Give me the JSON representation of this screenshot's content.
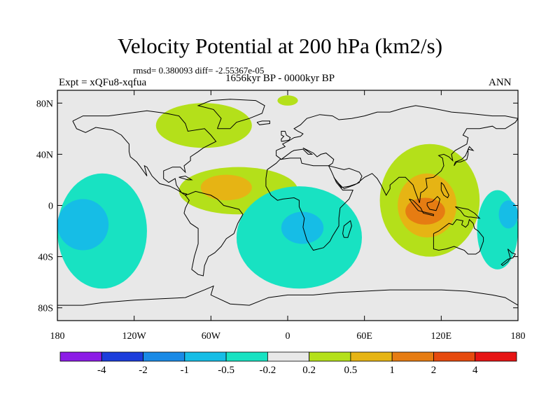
{
  "chart_data": {
    "type": "heatmap",
    "title": "Velocity Potential at 200 hPa (km2/s)",
    "stats_text": "rmsd= 0.380093 diff= -2.55367e-05",
    "left_label": "Expt = xQFu8-xqfua",
    "center_label": "1656kyr BP - 0000kyr BP",
    "right_label": "ANN",
    "projection": "cylindrical-equidistant",
    "xlim": [
      -180,
      180
    ],
    "ylim": [
      -90,
      90
    ],
    "x_ticks": [
      {
        "value": -180,
        "label": "180"
      },
      {
        "value": -120,
        "label": "120W"
      },
      {
        "value": -60,
        "label": "60W"
      },
      {
        "value": 0,
        "label": "0"
      },
      {
        "value": 60,
        "label": "60E"
      },
      {
        "value": 120,
        "label": "120E"
      },
      {
        "value": 180,
        "label": "180"
      }
    ],
    "y_ticks": [
      {
        "value": 80,
        "label": "80N"
      },
      {
        "value": 40,
        "label": "40N"
      },
      {
        "value": 0,
        "label": "0"
      },
      {
        "value": -40,
        "label": "40S"
      },
      {
        "value": -80,
        "label": "80S"
      }
    ],
    "colorbar": {
      "levels": [
        "-4",
        "-2",
        "-1",
        "-0.5",
        "-0.2",
        "0.2",
        "0.5",
        "1",
        "2",
        "4"
      ],
      "colors": [
        "#8c1ce6",
        "#1c3ddb",
        "#1a8ae6",
        "#16bde6",
        "#18e2c2",
        "#e8e8e8",
        "#b4e01a",
        "#e6b414",
        "#e67c12",
        "#e64a0e",
        "#e61414"
      ]
    },
    "blobs": [
      {
        "level": "0.2 to 0.5",
        "color": "#b4e01a",
        "lon": [
          -85,
          8
        ],
        "lat": [
          -7,
          30
        ]
      },
      {
        "level": "0.5 to 1",
        "color": "#e6b414",
        "lon": [
          -68,
          -28
        ],
        "lat": [
          4,
          24
        ]
      },
      {
        "level": "0.2 to 0.5",
        "color": "#b4e01a",
        "lon": [
          -103,
          -28
        ],
        "lat": [
          45,
          80
        ]
      },
      {
        "level": "0.2 to 0.5",
        "color": "#b4e01a",
        "lon": [
          -8,
          8
        ],
        "lat": [
          78,
          86
        ]
      },
      {
        "level": "0.2 to 0.5",
        "color": "#b4e01a",
        "lon": [
          72,
          150
        ],
        "lat": [
          -40,
          48
        ]
      },
      {
        "level": "0.5 to 1",
        "color": "#e6b414",
        "lon": [
          86,
          132
        ],
        "lat": [
          -25,
          25
        ]
      },
      {
        "level": "1 to 2",
        "color": "#e67c12",
        "lon": [
          92,
          123
        ],
        "lat": [
          -15,
          6
        ]
      },
      {
        "level": "-0.5 to -0.2",
        "color": "#18e2c2",
        "lon": [
          -180,
          -110
        ],
        "lat": [
          -65,
          25
        ]
      },
      {
        "level": "-1 to -0.5",
        "color": "#16bde6",
        "lon": [
          -180,
          -140
        ],
        "lat": [
          -35,
          5
        ]
      },
      {
        "level": "-0.5 to -0.2",
        "color": "#18e2c2",
        "lon": [
          -40,
          58
        ],
        "lat": [
          -65,
          15
        ]
      },
      {
        "level": "-1 to -0.5",
        "color": "#16bde6",
        "lon": [
          -5,
          28
        ],
        "lat": [
          -30,
          -5
        ]
      },
      {
        "level": "-0.5 to -0.2",
        "color": "#18e2c2",
        "lon": [
          148,
          180
        ],
        "lat": [
          -50,
          12
        ]
      },
      {
        "level": "-1 to -0.5",
        "color": "#16bde6",
        "lon": [
          165,
          180
        ],
        "lat": [
          -18,
          4
        ]
      }
    ]
  }
}
